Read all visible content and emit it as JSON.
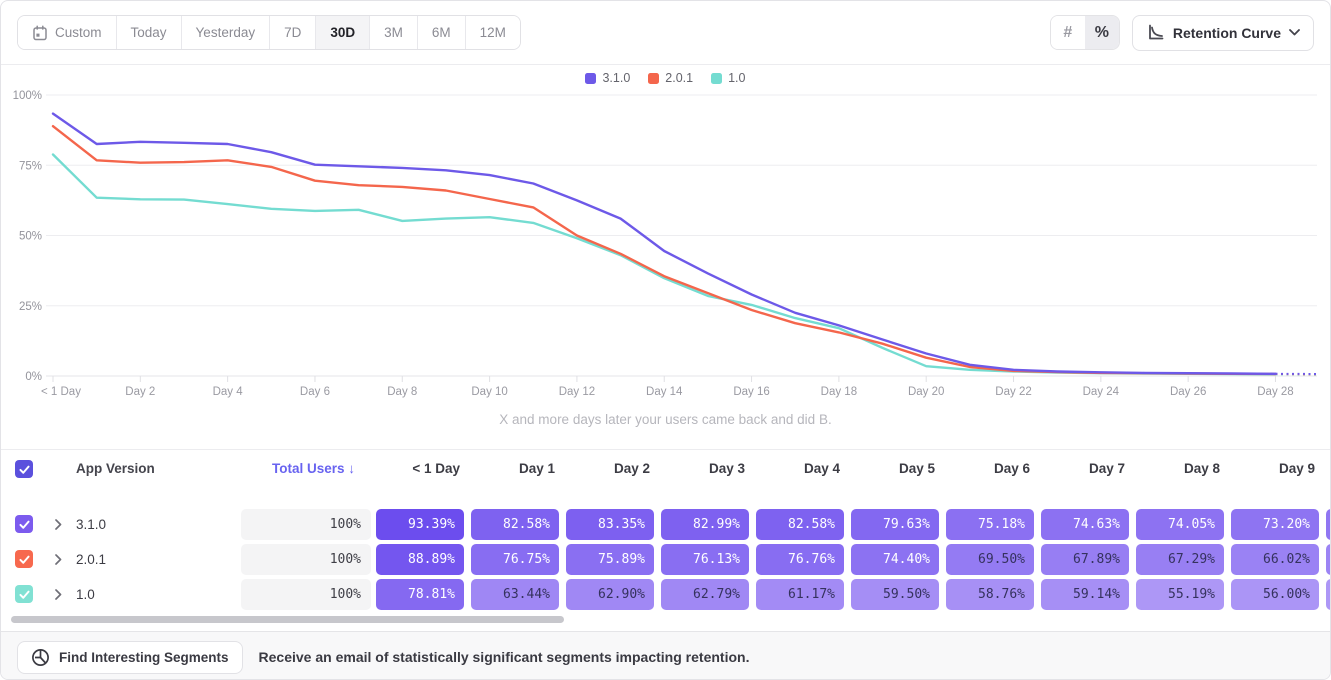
{
  "toolbar": {
    "date_ranges": [
      {
        "label": "Custom",
        "selected": false,
        "has_calendar_icon": true
      },
      {
        "label": "Today",
        "selected": false
      },
      {
        "label": "Yesterday",
        "selected": false
      },
      {
        "label": "7D",
        "selected": false
      },
      {
        "label": "30D",
        "selected": true
      },
      {
        "label": "3M",
        "selected": false
      },
      {
        "label": "6M",
        "selected": false
      },
      {
        "label": "12M",
        "selected": false
      }
    ],
    "value_modes": [
      {
        "label": "#",
        "selected": false
      },
      {
        "label": "%",
        "selected": true
      }
    ],
    "chart_type_label": "Retention Curve"
  },
  "chart_data": {
    "type": "line",
    "x_unit": "days",
    "x_tick_labels": [
      "< 1 Day",
      "Day 2",
      "Day 4",
      "Day 6",
      "Day 8",
      "Day 10",
      "Day 12",
      "Day 14",
      "Day 16",
      "Day 18",
      "Day 20",
      "Day 22",
      "Day 24",
      "Day 26",
      "Day 28"
    ],
    "y_tick_labels": [
      "0%",
      "25%",
      "50%",
      "75%",
      "100%"
    ],
    "ylim": [
      0,
      100
    ],
    "grid": true,
    "legend_position": "top-center",
    "x_caption": "X and more days later your users came back and did B.",
    "dashed_tail_from_index": 28,
    "series": [
      {
        "name": "3.1.0",
        "color": "#6d59e8",
        "values": [
          93.39,
          82.58,
          83.35,
          82.99,
          82.58,
          79.63,
          75.18,
          74.63,
          74.05,
          73.2,
          71.5,
          68.5,
          62.5,
          56.0,
          44.5,
          36.5,
          29.0,
          22.5,
          18.0,
          13.0,
          8.0,
          4.0,
          2.2,
          1.6,
          1.3,
          1.1,
          1.0,
          0.9,
          0.8,
          0.7
        ]
      },
      {
        "name": "2.0.1",
        "color": "#f4664c",
        "values": [
          88.89,
          76.75,
          75.89,
          76.13,
          76.76,
          74.4,
          69.5,
          67.89,
          67.29,
          66.02,
          63.0,
          60.0,
          50.0,
          43.5,
          35.5,
          29.5,
          23.5,
          18.8,
          15.5,
          11.5,
          6.5,
          3.2,
          1.8,
          1.4,
          1.1,
          1.0,
          0.9,
          0.8,
          0.7,
          0.6
        ]
      },
      {
        "name": "1.0",
        "color": "#74dcd1",
        "values": [
          78.81,
          63.44,
          62.9,
          62.79,
          61.17,
          59.5,
          58.76,
          59.14,
          55.19,
          56.0,
          56.5,
          54.5,
          49.0,
          43.0,
          34.8,
          28.5,
          25.3,
          20.6,
          17.0,
          10.0,
          3.5,
          2.2,
          1.6,
          1.2,
          1.0,
          0.9,
          0.8,
          0.7,
          0.6,
          0.5
        ]
      }
    ]
  },
  "table": {
    "select_all_checked": true,
    "headers": {
      "app_version": "App Version",
      "total_users": "Total Users ↓",
      "days": [
        "< 1 Day",
        "Day 1",
        "Day 2",
        "Day 3",
        "Day 4",
        "Day 5",
        "Day 6",
        "Day 7",
        "Day 8",
        "Day 9"
      ]
    },
    "rows": [
      {
        "label": "3.1.0",
        "checked": true,
        "checkbox_color": "#7c5bee",
        "total": "100%",
        "cells": [
          93.39,
          82.58,
          83.35,
          82.99,
          82.58,
          79.63,
          75.18,
          74.63,
          74.05,
          73.2
        ]
      },
      {
        "label": "2.0.1",
        "checked": true,
        "checkbox_color": "#f7694e",
        "total": "100%",
        "cells": [
          88.89,
          76.75,
          75.89,
          76.13,
          76.76,
          74.4,
          69.5,
          67.89,
          67.29,
          66.02
        ]
      },
      {
        "label": "1.0",
        "checked": true,
        "checkbox_color": "#81e1d3",
        "total": "100%",
        "cells": [
          78.81,
          63.44,
          62.9,
          62.79,
          61.17,
          59.5,
          58.76,
          59.14,
          55.19,
          56.0
        ]
      }
    ]
  },
  "footer": {
    "button_label": "Find Interesting Segments",
    "message": "Receive an email of statistically significant segments impacting retention."
  },
  "colors": {
    "header_checkbox": "#5b50dd",
    "cell_dark": "#6b4cee",
    "cell_light": "#ad97f6",
    "cell_text_dark": "#35325e",
    "cell_text_light": "#ffffff",
    "grid_line": "#ededf0",
    "axis_text": "#93939b"
  }
}
